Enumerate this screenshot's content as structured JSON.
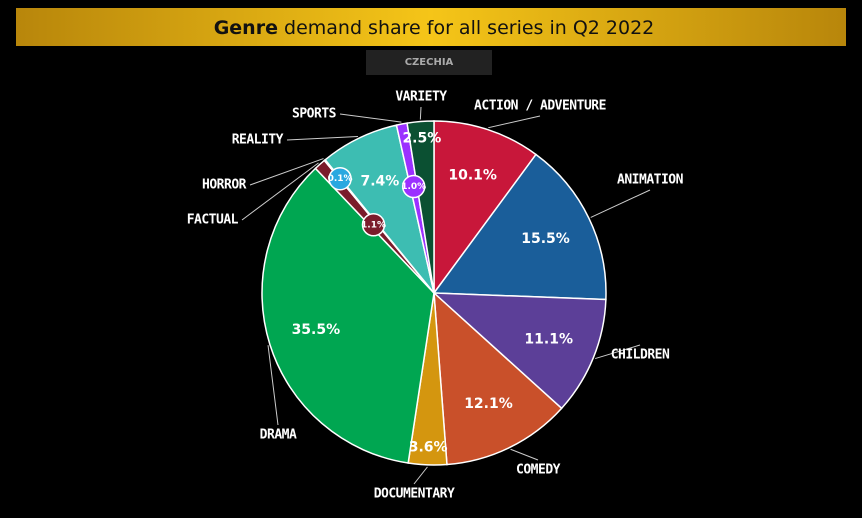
{
  "chart_data": {
    "type": "pie",
    "title_bold": "Genre",
    "title": "demand share for all series in Q2 2022",
    "subtitle": "CZECHIA",
    "categories": [
      "ACTION / ADVENTURE",
      "ANIMATION",
      "CHILDREN",
      "COMEDY",
      "DOCUMENTARY",
      "DRAMA",
      "FACTUAL",
      "HORROR",
      "REALITY",
      "SPORTS",
      "VARIETY"
    ],
    "values": [
      10.1,
      15.5,
      11.1,
      12.1,
      3.6,
      35.5,
      1.1,
      0.1,
      7.4,
      1.0,
      2.5
    ],
    "value_labels": [
      "10.1%",
      "15.5%",
      "11.1%",
      "12.1%",
      "3.6%",
      "35.5%",
      "1.1%",
      "0.1%",
      "7.4%",
      "1.0%",
      "2.5%"
    ],
    "colors": [
      "#c8173a",
      "#1a5e9a",
      "#5c3f98",
      "#c9502a",
      "#d4960f",
      "#00a651",
      "#7b1c2b",
      "#29a8e0",
      "#3dbdb2",
      "#9b30ff",
      "#0b5032"
    ]
  }
}
